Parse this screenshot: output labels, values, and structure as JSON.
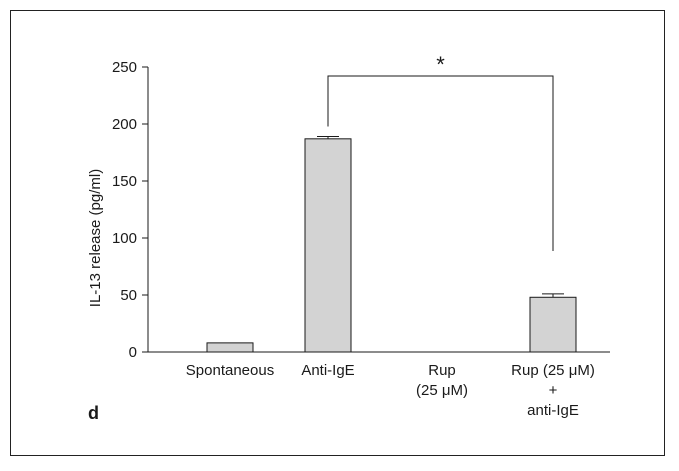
{
  "chart_data": {
    "type": "bar",
    "title": "",
    "xlabel": "",
    "ylabel": "IL-13 release (pg/ml)",
    "ylim": [
      0,
      250
    ],
    "yticks": [
      0,
      50,
      100,
      150,
      200,
      250
    ],
    "grid": false,
    "categories": [
      [
        "Spontaneous"
      ],
      [
        "Anti-IgE"
      ],
      [
        "Rup",
        "(25 μM)"
      ],
      [
        "Rup (25 μM)",
        "+",
        "anti-IgE"
      ]
    ],
    "values": [
      8,
      187,
      0,
      48
    ],
    "errors": [
      0,
      2,
      0,
      3
    ],
    "bar_color": "#d3d3d3",
    "bar_edge_color": "#1a1a1a",
    "significance": {
      "from_category": 1,
      "to_category": 3,
      "label": "*"
    },
    "panel_label": "d"
  }
}
